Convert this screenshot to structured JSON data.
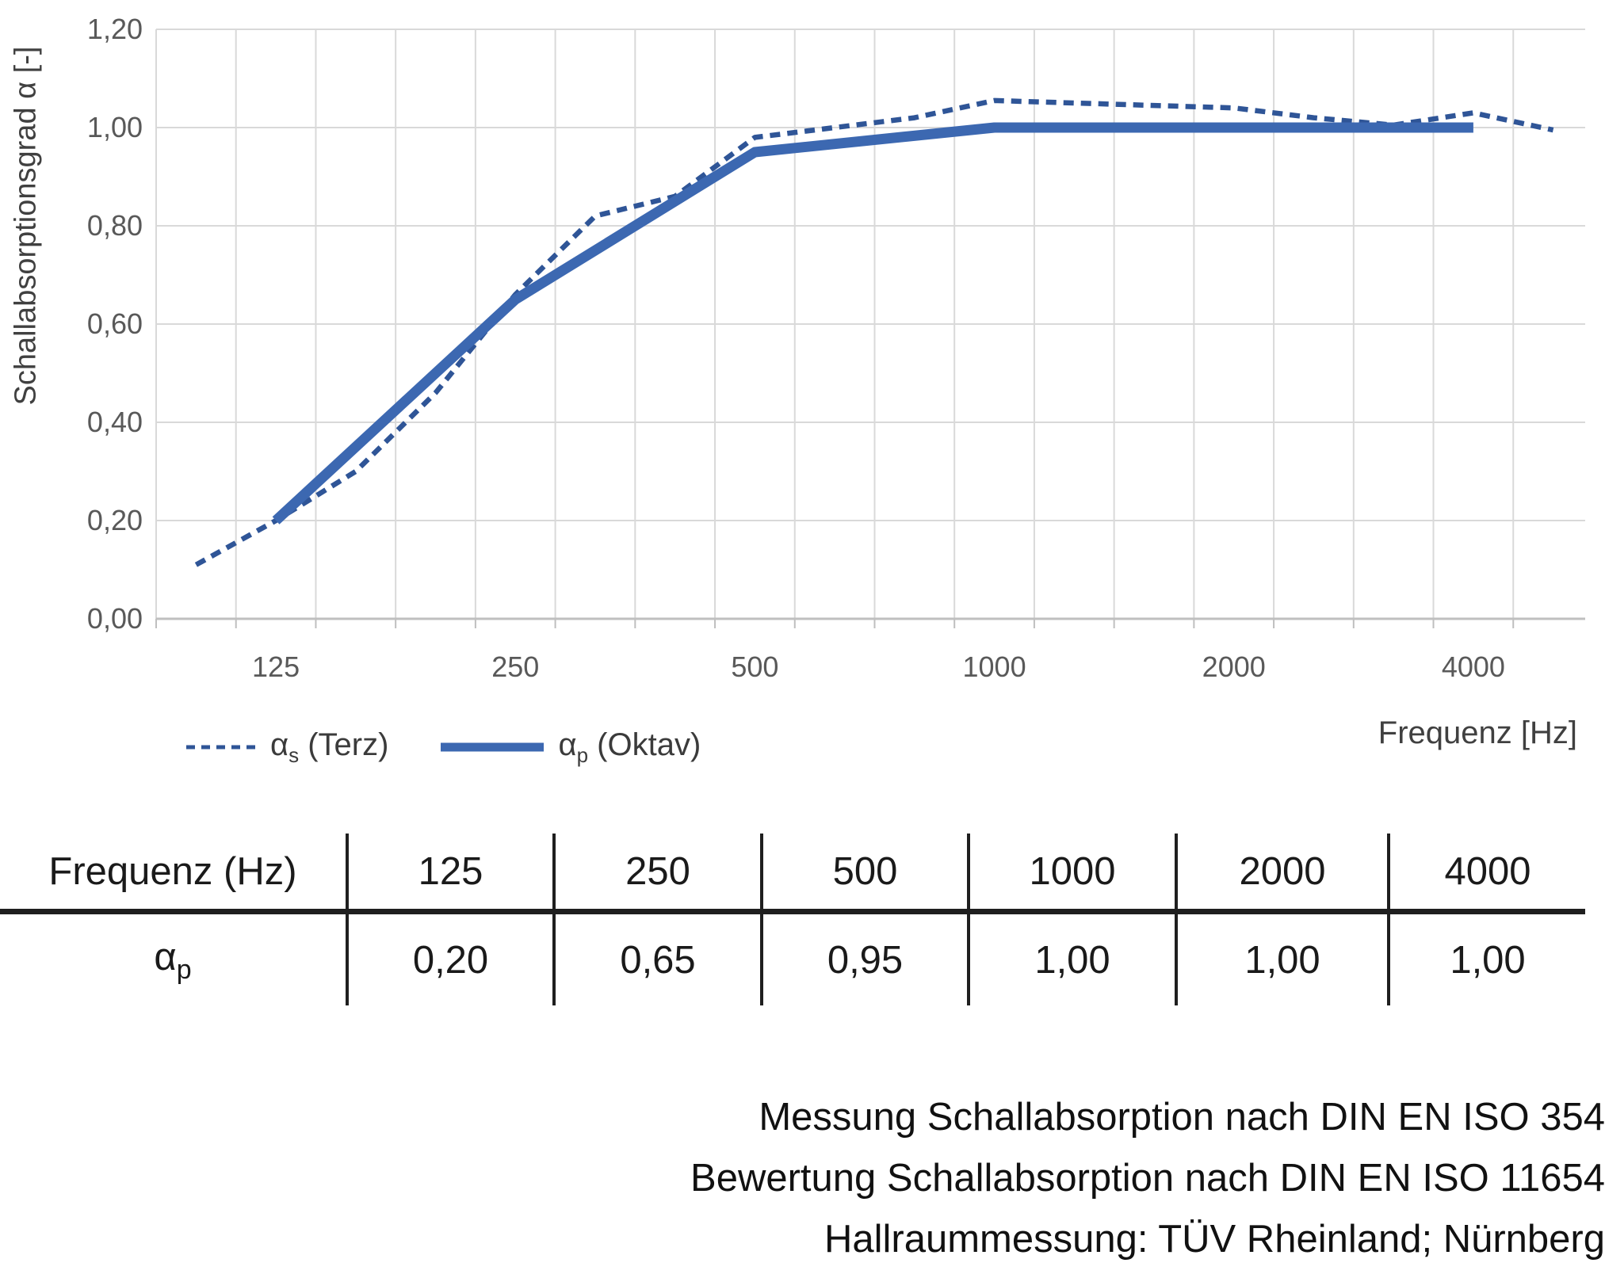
{
  "chart": {
    "y_axis_title": "Schallabsorptionsgrad α [-]",
    "x_axis_title": "Frequenz [Hz]",
    "y_tick_labels": [
      "0,00",
      "0,20",
      "0,40",
      "0,60",
      "0,80",
      "1,00",
      "1,20"
    ],
    "x_tick_labels": [
      "125",
      "250",
      "500",
      "1000",
      "2000",
      "4000"
    ],
    "grid_color": "#D9D9D9",
    "axis_line_color": "#BFBFBF",
    "tick_text_color": "#595959"
  },
  "chart_data": {
    "type": "line",
    "x_scale": "logarithmic (third-octave bands), right edge clipped by image",
    "categories": [
      100,
      125,
      160,
      200,
      250,
      315,
      400,
      500,
      630,
      800,
      1000,
      1250,
      1600,
      2000,
      2500,
      3150,
      4000,
      5000
    ],
    "series": [
      {
        "name": "αs (Terz)",
        "name_base": "α",
        "name_sub": "s",
        "name_rest": " (Terz)",
        "style": "dashed",
        "color": "#2F5597",
        "x": [
          100,
          125,
          160,
          200,
          250,
          315,
          400,
          500,
          630,
          800,
          1000,
          1250,
          1600,
          2000,
          2500,
          3150,
          4000,
          5000
        ],
        "values": [
          0.11,
          0.2,
          0.3,
          0.46,
          0.66,
          0.82,
          0.86,
          0.98,
          1.0,
          1.02,
          1.055,
          1.05,
          1.045,
          1.04,
          1.02,
          1.005,
          1.03,
          0.995
        ]
      },
      {
        "name": "αp (Oktav)",
        "name_base": "α",
        "name_sub": "p",
        "name_rest": " (Oktav)",
        "style": "solid",
        "color": "#3C68B1",
        "x": [
          125,
          250,
          500,
          1000,
          2000,
          4000
        ],
        "values": [
          0.2,
          0.65,
          0.95,
          1.0,
          1.0,
          1.0
        ]
      }
    ],
    "title": "",
    "xlabel": "Frequenz [Hz]",
    "ylabel": "Schallabsorptionsgrad α [-]",
    "ylim": [
      0,
      1.2
    ],
    "y_tick_step": 0.2,
    "grid": true,
    "legend_position": "bottom-left"
  },
  "table": {
    "header_label": "Frequenz (Hz)",
    "columns": [
      "125",
      "250",
      "500",
      "1000",
      "2000",
      "4000"
    ],
    "row_label_base": "α",
    "row_label_sub": "p",
    "values": [
      "0,20",
      "0,65",
      "0,95",
      "1,00",
      "1,00",
      "1,00"
    ]
  },
  "footnotes": {
    "lines": [
      "Messung Schallabsorption nach DIN EN ISO 354",
      "Bewertung Schallabsorption nach DIN EN ISO 11654",
      "Hallraummessung: TÜV Rheinland; Nürnberg"
    ]
  }
}
